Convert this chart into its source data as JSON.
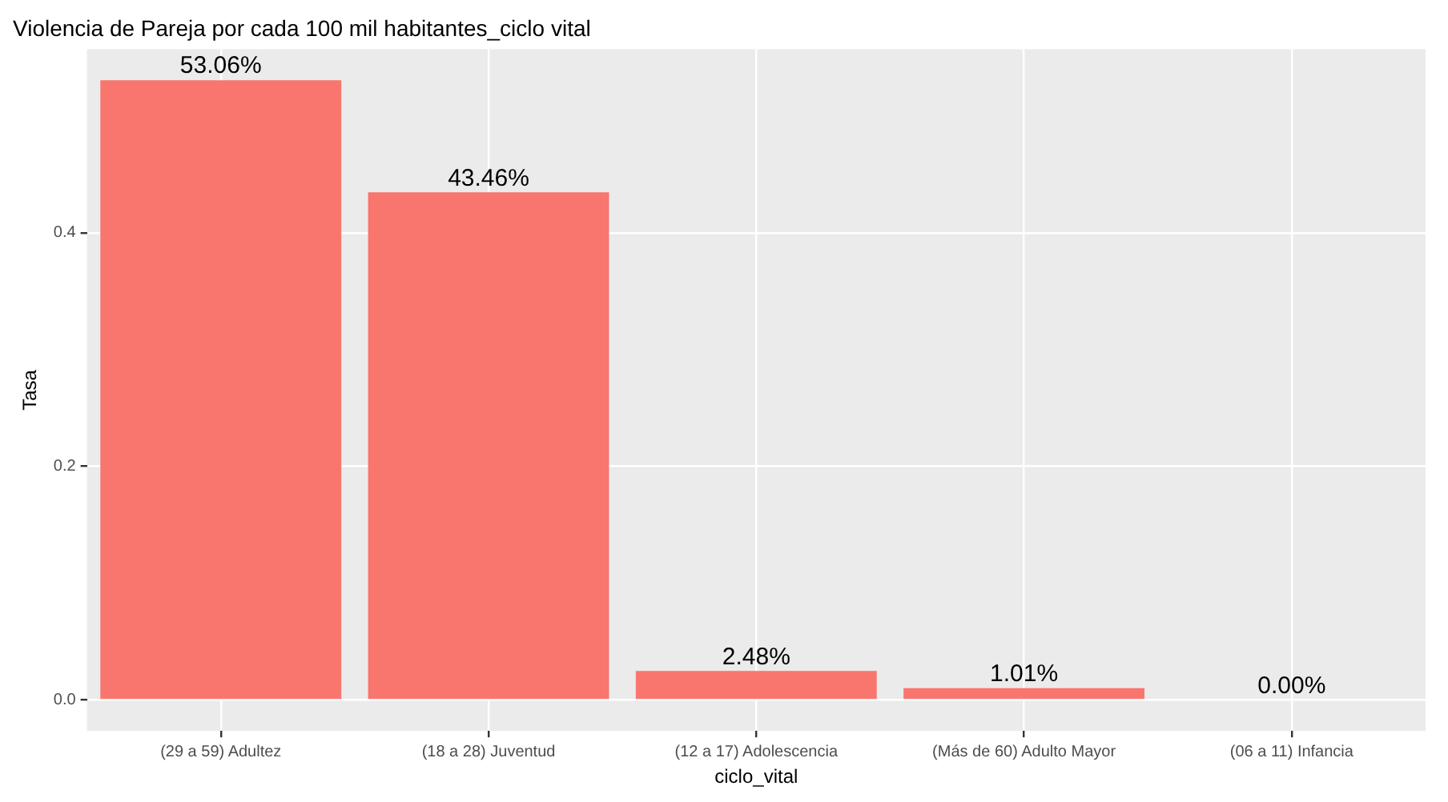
{
  "chart_data": {
    "type": "bar",
    "title": "Violencia de Pareja por cada 100 mil habitantes_ciclo vital",
    "xlabel": "ciclo_vital",
    "ylabel": "Tasa",
    "categories": [
      "(29 a 59) Adultez",
      "(18 a 28) Juventud",
      "(12 a 17) Adolescencia",
      "(Más de 60) Adulto Mayor",
      "(06 a 11) Infancia"
    ],
    "values": [
      0.5306,
      0.4346,
      0.0248,
      0.0101,
      0
    ],
    "value_labels": [
      "53.06%",
      "43.46%",
      "2.48%",
      "1.01%",
      "0.00%"
    ],
    "color": "#f8766d",
    "ylim": [
      -0.0265,
      0.557
    ],
    "yticks": [
      {
        "value": 0,
        "label": "0.0"
      },
      {
        "value": 0.2,
        "label": "0.2"
      },
      {
        "value": 0.4,
        "label": "0.4"
      }
    ],
    "grid": true,
    "legend": false
  }
}
